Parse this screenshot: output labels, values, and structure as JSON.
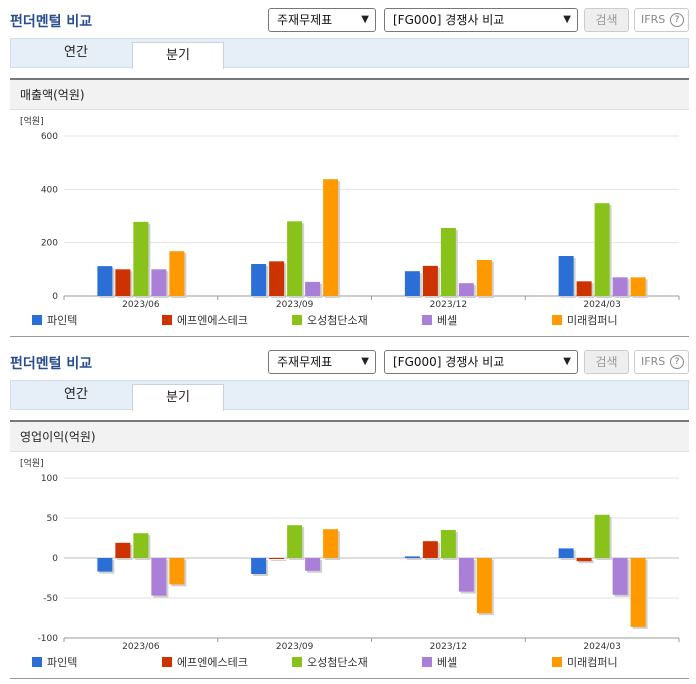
{
  "panels": [
    {
      "title": "펀더멘털 비교",
      "select1": "주재무제표",
      "select2": "[FG000] 경쟁사 비교",
      "search_label": "검색",
      "ifrs_label": "IFRS",
      "help_label": "?",
      "tabs": [
        "연간",
        "분기"
      ],
      "section_title": "매출액(억원)"
    },
    {
      "title": "펀더멘털 비교",
      "select1": "주재무제표",
      "select2": "[FG000] 경쟁사 비교",
      "search_label": "검색",
      "ifrs_label": "IFRS",
      "help_label": "?",
      "tabs": [
        "연간",
        "분기"
      ],
      "section_title": "영업이익(억원)"
    }
  ],
  "colors": {
    "series": [
      "#2b6fd6",
      "#cc3300",
      "#88c21a",
      "#a97fd8",
      "#ff9900"
    ]
  },
  "chart_data": [
    {
      "type": "bar",
      "unit_label": "[억원]",
      "categories": [
        "2023/06",
        "2023/09",
        "2023/12",
        "2024/03"
      ],
      "ylim": [
        0,
        600
      ],
      "yticks": [
        0,
        200,
        400,
        600
      ],
      "grid": true,
      "legend": "bottom",
      "series": [
        {
          "name": "파인텍",
          "values": [
            112,
            120,
            93,
            150
          ]
        },
        {
          "name": "에프엔에스테크",
          "values": [
            100,
            130,
            113,
            55
          ]
        },
        {
          "name": "오성첨단소재",
          "values": [
            278,
            280,
            255,
            348
          ]
        },
        {
          "name": "베셀",
          "values": [
            100,
            53,
            48,
            70
          ]
        },
        {
          "name": "미래컴퍼니",
          "values": [
            168,
            438,
            135,
            70
          ]
        }
      ]
    },
    {
      "type": "bar",
      "unit_label": "[억원]",
      "categories": [
        "2023/06",
        "2023/09",
        "2023/12",
        "2024/03"
      ],
      "ylim": [
        -100,
        100
      ],
      "yticks": [
        -100,
        -50,
        0,
        50,
        100
      ],
      "grid": true,
      "legend": "bottom",
      "series": [
        {
          "name": "파인텍",
          "values": [
            -17,
            -20,
            2,
            12
          ]
        },
        {
          "name": "에프엔에스테크",
          "values": [
            19,
            -1,
            21,
            -4
          ]
        },
        {
          "name": "오성첨단소재",
          "values": [
            31,
            41,
            35,
            54
          ]
        },
        {
          "name": "베셀",
          "values": [
            -47,
            -16,
            -42,
            -46
          ]
        },
        {
          "name": "미래컴퍼니",
          "values": [
            -33,
            36,
            -69,
            -86
          ]
        }
      ]
    }
  ]
}
